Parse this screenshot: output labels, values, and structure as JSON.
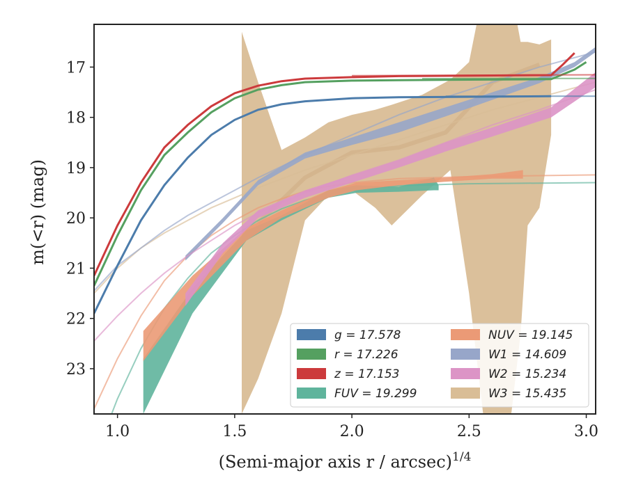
{
  "chart_data": {
    "type": "line",
    "xlabel": "(Semi-major axis r / arcsec)",
    "xlabel_sup": "1/4",
    "ylabel": "m(<r) (mag)",
    "xlim": [
      0.9,
      3.04
    ],
    "ylim": [
      23.9,
      16.15
    ],
    "y_inverted": true,
    "xticks": [
      "1.0",
      "1.5",
      "2.0",
      "2.5",
      "3.0"
    ],
    "yticks": [
      "17",
      "18",
      "19",
      "20",
      "21",
      "22",
      "23"
    ],
    "legend_position": "lower-right",
    "series": [
      {
        "name": "g = 17.578",
        "color": "#4c7cab",
        "data": [
          [
            0.9,
            21.9
          ],
          [
            1.0,
            20.95
          ],
          [
            1.1,
            20.05
          ],
          [
            1.2,
            19.35
          ],
          [
            1.3,
            18.8
          ],
          [
            1.4,
            18.35
          ],
          [
            1.5,
            18.05
          ],
          [
            1.6,
            17.85
          ],
          [
            1.7,
            17.74
          ],
          [
            1.8,
            17.68
          ],
          [
            2.0,
            17.62
          ],
          [
            2.2,
            17.6
          ],
          [
            2.5,
            17.59
          ],
          [
            2.85,
            17.58
          ]
        ],
        "width": 3,
        "model": [
          [
            2.4,
            17.58
          ],
          [
            3.04,
            17.578
          ]
        ]
      },
      {
        "name": "r = 17.226",
        "color": "#55a060",
        "data": [
          [
            0.9,
            21.35
          ],
          [
            1.0,
            20.35
          ],
          [
            1.1,
            19.45
          ],
          [
            1.2,
            18.75
          ],
          [
            1.3,
            18.3
          ],
          [
            1.4,
            17.9
          ],
          [
            1.5,
            17.62
          ],
          [
            1.6,
            17.45
          ],
          [
            1.7,
            17.36
          ],
          [
            1.8,
            17.3
          ],
          [
            2.0,
            17.27
          ],
          [
            2.2,
            17.26
          ],
          [
            2.5,
            17.25
          ],
          [
            2.85,
            17.24
          ],
          [
            2.95,
            17.05
          ],
          [
            3.0,
            16.9
          ]
        ],
        "width": 3,
        "model": [
          [
            2.3,
            17.23
          ],
          [
            3.04,
            17.226
          ]
        ]
      },
      {
        "name": "z = 17.153",
        "color": "#cc3a3c",
        "data": [
          [
            0.9,
            21.15
          ],
          [
            1.0,
            20.15
          ],
          [
            1.1,
            19.3
          ],
          [
            1.2,
            18.6
          ],
          [
            1.3,
            18.15
          ],
          [
            1.4,
            17.78
          ],
          [
            1.5,
            17.52
          ],
          [
            1.6,
            17.37
          ],
          [
            1.7,
            17.28
          ],
          [
            1.8,
            17.23
          ],
          [
            2.0,
            17.2
          ],
          [
            2.2,
            17.18
          ],
          [
            2.5,
            17.17
          ],
          [
            2.85,
            17.16
          ],
          [
            2.9,
            16.95
          ],
          [
            2.95,
            16.72
          ]
        ],
        "width": 3,
        "model": [
          [
            2.0,
            17.17
          ],
          [
            3.04,
            17.153
          ]
        ]
      },
      {
        "name": "FUV = 19.299",
        "color": "#5fb49c",
        "band": [
          [
            1.11,
            22.8,
            23.9
          ],
          [
            1.32,
            21.4,
            21.9
          ],
          [
            1.55,
            20.25,
            20.45
          ],
          [
            1.7,
            19.95,
            20.05
          ],
          [
            1.9,
            19.45,
            19.6
          ],
          [
            2.02,
            19.35,
            19.5
          ],
          [
            2.2,
            19.38,
            19.48
          ],
          [
            2.35,
            19.2,
            19.45
          ],
          [
            2.37,
            19.35,
            19.45
          ]
        ],
        "model": [
          [
            0.9,
            24.8
          ],
          [
            1.0,
            23.6
          ],
          [
            1.1,
            22.6
          ],
          [
            1.2,
            21.8
          ],
          [
            1.3,
            21.2
          ],
          [
            1.4,
            20.7
          ],
          [
            1.5,
            20.35
          ],
          [
            1.6,
            20.05
          ],
          [
            1.7,
            19.82
          ],
          [
            1.8,
            19.65
          ],
          [
            1.9,
            19.52
          ],
          [
            2.0,
            19.44
          ],
          [
            2.2,
            19.36
          ],
          [
            2.5,
            19.32
          ],
          [
            3.04,
            19.299
          ]
        ]
      },
      {
        "name": "NUV = 19.145",
        "color": "#eb9a76",
        "band": [
          [
            1.11,
            22.25,
            22.85
          ],
          [
            1.32,
            21.15,
            21.55
          ],
          [
            1.55,
            20.2,
            20.45
          ],
          [
            1.7,
            19.85,
            20.0
          ],
          [
            1.9,
            19.45,
            19.6
          ],
          [
            2.02,
            19.3,
            19.45
          ],
          [
            2.2,
            19.25,
            19.35
          ],
          [
            2.4,
            19.2,
            19.28
          ],
          [
            2.6,
            19.13,
            19.22
          ],
          [
            2.73,
            19.05,
            19.22
          ]
        ],
        "model": [
          [
            0.9,
            23.8
          ],
          [
            1.0,
            22.8
          ],
          [
            1.1,
            21.95
          ],
          [
            1.2,
            21.25
          ],
          [
            1.3,
            20.75
          ],
          [
            1.4,
            20.35
          ],
          [
            1.5,
            20.05
          ],
          [
            1.6,
            19.8
          ],
          [
            1.7,
            19.62
          ],
          [
            1.8,
            19.47
          ],
          [
            1.9,
            19.37
          ],
          [
            2.0,
            19.3
          ],
          [
            2.2,
            19.22
          ],
          [
            2.5,
            19.18
          ],
          [
            3.04,
            19.145
          ]
        ]
      },
      {
        "name": "W1 = 14.609",
        "color": "#97a6c9",
        "band": [
          [
            1.29,
            20.75,
            20.85
          ],
          [
            1.45,
            20.0,
            20.1
          ],
          [
            1.6,
            19.25,
            19.35
          ],
          [
            1.8,
            18.7,
            18.82
          ],
          [
            2.0,
            18.4,
            18.55
          ],
          [
            2.2,
            18.1,
            18.3
          ],
          [
            2.4,
            17.8,
            17.98
          ],
          [
            2.6,
            17.5,
            17.65
          ],
          [
            2.8,
            17.2,
            17.32
          ],
          [
            2.95,
            16.9,
            17.0
          ],
          [
            3.04,
            16.6,
            16.7
          ]
        ],
        "model": [
          [
            0.9,
            21.45
          ],
          [
            1.0,
            20.95
          ],
          [
            1.1,
            20.6
          ],
          [
            1.2,
            20.25
          ],
          [
            1.3,
            19.95
          ],
          [
            1.4,
            19.7
          ],
          [
            1.5,
            19.45
          ],
          [
            1.6,
            19.2
          ],
          [
            1.8,
            18.75
          ],
          [
            2.0,
            18.35
          ],
          [
            2.2,
            17.95
          ],
          [
            2.4,
            17.6
          ],
          [
            2.6,
            17.3
          ],
          [
            2.8,
            17.0
          ],
          [
            3.04,
            16.7
          ]
        ]
      },
      {
        "name": "W2 = 15.234",
        "color": "#dc94c6",
        "band": [
          [
            1.29,
            21.5,
            21.75
          ],
          [
            1.45,
            20.5,
            20.7
          ],
          [
            1.6,
            19.85,
            20.0
          ],
          [
            1.8,
            19.45,
            19.6
          ],
          [
            2.0,
            19.15,
            19.3
          ],
          [
            2.2,
            18.85,
            19.0
          ],
          [
            2.4,
            18.5,
            18.68
          ],
          [
            2.6,
            18.2,
            18.38
          ],
          [
            2.85,
            17.8,
            18.0
          ],
          [
            3.04,
            17.1,
            17.4
          ]
        ],
        "model": [
          [
            0.9,
            22.45
          ],
          [
            1.0,
            21.95
          ],
          [
            1.1,
            21.5
          ],
          [
            1.2,
            21.1
          ],
          [
            1.3,
            20.75
          ],
          [
            1.4,
            20.45
          ],
          [
            1.5,
            20.15
          ],
          [
            1.6,
            19.9
          ],
          [
            1.8,
            19.5
          ],
          [
            2.0,
            19.15
          ],
          [
            2.2,
            18.85
          ],
          [
            2.4,
            18.5
          ],
          [
            2.6,
            18.15
          ],
          [
            2.8,
            17.85
          ],
          [
            3.04,
            17.45
          ]
        ]
      },
      {
        "name": "W3 = 15.435",
        "color": "#d9bd96",
        "band": [
          [
            1.53,
            16.3,
            23.9
          ],
          [
            1.6,
            17.3,
            23.2
          ],
          [
            1.7,
            18.65,
            21.9
          ],
          [
            1.8,
            18.4,
            20.05
          ],
          [
            1.9,
            18.1,
            19.55
          ],
          [
            2.0,
            17.95,
            19.45
          ],
          [
            2.1,
            17.85,
            19.8
          ],
          [
            2.17,
            17.75,
            20.15
          ],
          [
            2.3,
            17.55,
            19.55
          ],
          [
            2.42,
            17.25,
            19.05
          ],
          [
            2.5,
            16.9,
            21.5
          ],
          [
            2.56,
            15.5,
            23.9
          ],
          [
            2.68,
            15.5,
            23.9
          ],
          [
            2.72,
            16.5,
            22.3
          ],
          [
            2.75,
            16.5,
            20.15
          ],
          [
            2.8,
            16.55,
            19.8
          ],
          [
            2.85,
            16.45,
            18.35
          ]
        ],
        "mid": [
          [
            1.6,
            20.1
          ],
          [
            1.8,
            19.2
          ],
          [
            2.0,
            18.7
          ],
          [
            2.2,
            18.6
          ],
          [
            2.4,
            18.3
          ],
          [
            2.6,
            17.3
          ],
          [
            2.8,
            16.95
          ]
        ],
        "model": [
          [
            0.9,
            21.5
          ],
          [
            1.0,
            21.0
          ],
          [
            1.1,
            20.6
          ],
          [
            1.2,
            20.3
          ],
          [
            1.3,
            20.05
          ],
          [
            1.4,
            19.8
          ],
          [
            1.5,
            19.6
          ],
          [
            1.6,
            19.4
          ],
          [
            1.8,
            19.05
          ],
          [
            2.0,
            18.75
          ],
          [
            2.2,
            18.45
          ],
          [
            2.4,
            18.15
          ],
          [
            2.6,
            17.85
          ],
          [
            2.8,
            17.6
          ],
          [
            3.04,
            17.3
          ]
        ]
      }
    ]
  }
}
